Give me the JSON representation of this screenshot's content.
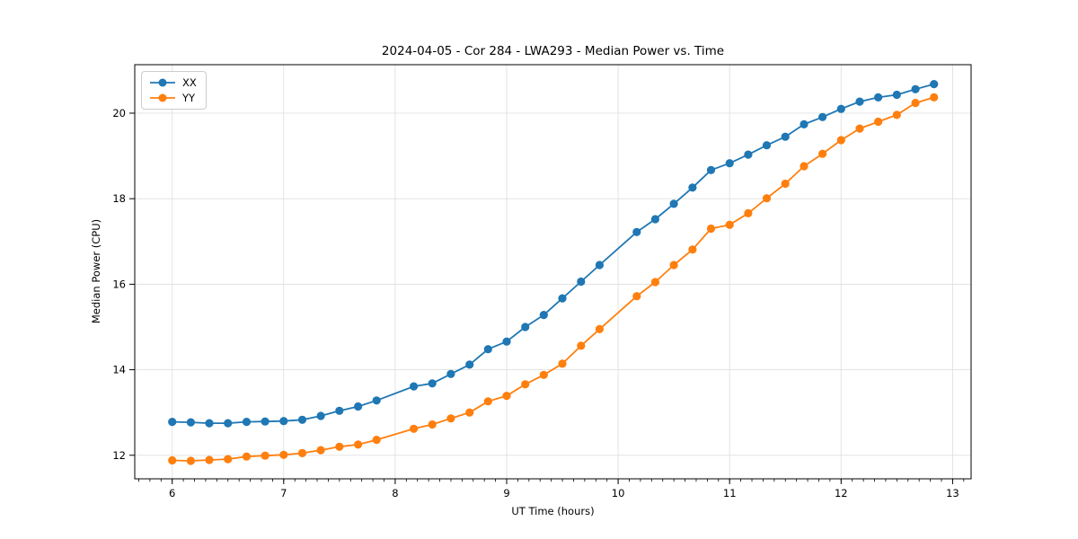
{
  "chart_data": {
    "type": "line",
    "title": "2024-04-05 - Cor 284 - LWA293 - Median Power vs. Time",
    "xlabel": "UT Time (hours)",
    "ylabel": "Median Power (CPU)",
    "x": [
      6.0,
      6.167,
      6.333,
      6.5,
      6.667,
      6.833,
      7.0,
      7.167,
      7.333,
      7.5,
      7.667,
      7.833,
      8.167,
      8.333,
      8.5,
      8.667,
      8.833,
      9.0,
      9.167,
      9.333,
      9.5,
      9.667,
      9.833,
      10.167,
      10.333,
      10.5,
      10.667,
      10.833,
      11.0,
      11.167,
      11.333,
      11.5,
      11.667,
      11.833,
      12.0,
      12.167,
      12.333,
      12.5,
      12.667,
      12.833
    ],
    "series": [
      {
        "name": "XX",
        "color": "#1f77b4",
        "marker": "circle",
        "values": [
          12.78,
          12.77,
          12.75,
          12.75,
          12.78,
          12.79,
          12.8,
          12.83,
          12.92,
          13.04,
          13.14,
          13.28,
          13.61,
          13.68,
          13.9,
          14.12,
          14.48,
          14.66,
          15.0,
          15.28,
          15.67,
          16.06,
          16.45,
          17.22,
          17.52,
          17.88,
          18.26,
          18.67,
          18.83,
          19.03,
          19.25,
          19.45,
          19.74,
          19.91,
          20.1,
          20.27,
          20.37,
          20.43,
          20.56,
          20.68
        ]
      },
      {
        "name": "YY",
        "color": "#ff7f0e",
        "marker": "circle",
        "values": [
          11.88,
          11.87,
          11.89,
          11.91,
          11.97,
          11.99,
          12.01,
          12.05,
          12.12,
          12.2,
          12.25,
          12.36,
          12.62,
          12.72,
          12.86,
          13.0,
          13.26,
          13.39,
          13.66,
          13.88,
          14.14,
          14.56,
          14.95,
          15.72,
          16.05,
          16.45,
          16.81,
          17.3,
          17.39,
          17.66,
          18.01,
          18.35,
          18.76,
          19.05,
          19.37,
          19.64,
          19.8,
          19.96,
          20.24,
          20.37
        ]
      }
    ],
    "xticks": [
      6,
      7,
      8,
      9,
      10,
      11,
      12,
      13
    ],
    "yticks": [
      12,
      14,
      16,
      18,
      20
    ],
    "xlim": [
      5.664,
      13.166
    ],
    "ylim": [
      11.449,
      21.134
    ],
    "x_minor_tick_step": 0.1,
    "grid": true,
    "legend_position": "upper left",
    "colors": {
      "grid": "#e0e0e0",
      "spine": "#000000",
      "text": "#000000"
    }
  }
}
